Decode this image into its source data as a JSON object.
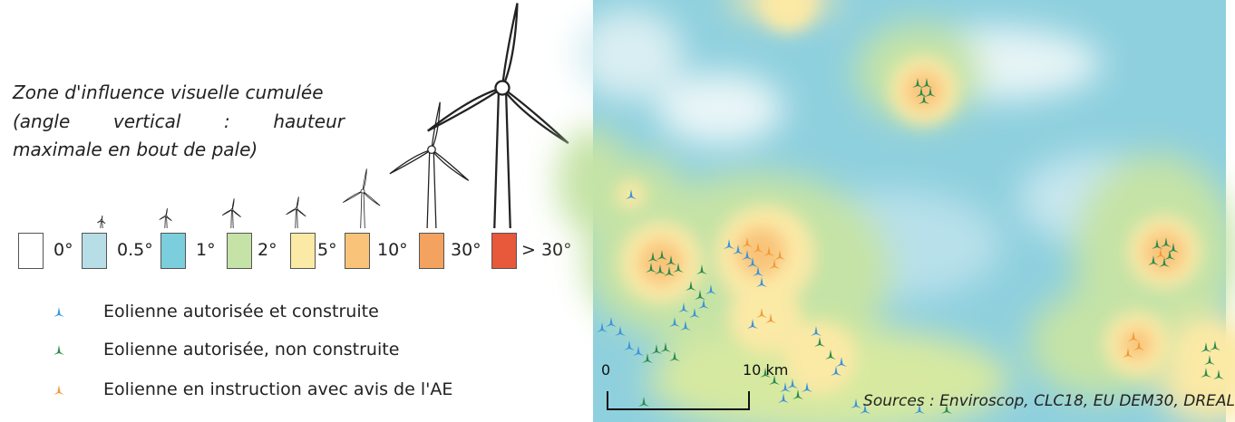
{
  "legend": {
    "title_lines": [
      [
        "Zone d'influence visuelle cumulée"
      ],
      [
        "(angle",
        "vertical",
        ":",
        "hauteur"
      ],
      [
        "maximale en bout de pale)"
      ]
    ],
    "classes": [
      {
        "label": "0°",
        "color": "#ffffff"
      },
      {
        "label": "0.5°",
        "color": "#b7dde6"
      },
      {
        "label": "1°",
        "color": "#7bcfdd"
      },
      {
        "label": "2°",
        "color": "#c5e3a6"
      },
      {
        "label": "5°",
        "color": "#fbe9a6"
      },
      {
        "label": "10°",
        "color": "#f9c47a"
      },
      {
        "label": "30°",
        "color": "#f4a25f"
      },
      {
        "label": "> 30°",
        "color": "#e8583a"
      }
    ],
    "markers": [
      {
        "label": "Eolienne autorisée et construite",
        "color": "#3b93d8"
      },
      {
        "label": "Eolienne autorisée, non construite",
        "color": "#2b8a4c"
      },
      {
        "label": "Eolienne en instruction avec avis de l'AE",
        "color": "#f09a3a"
      }
    ]
  },
  "map": {
    "scale": {
      "start_label": "0",
      "end_label": "10 km"
    },
    "sources": "Sources : Enviroscop, CLC18, EU DEM30, DREAL"
  }
}
